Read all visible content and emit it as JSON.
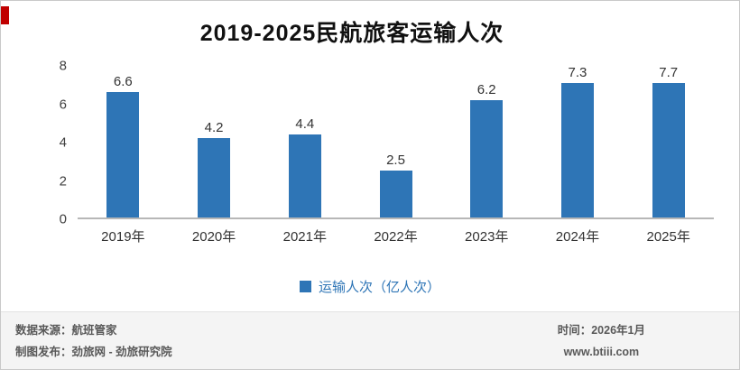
{
  "chart_data": {
    "type": "bar",
    "title": "2019-2025民航旅客运输人次",
    "categories": [
      "2019年",
      "2020年",
      "2021年",
      "2022年",
      "2023年",
      "2024年",
      "2025年"
    ],
    "values": [
      6.6,
      4.2,
      4.4,
      2.5,
      6.2,
      7.3,
      7.7
    ],
    "ylim": [
      0,
      8
    ],
    "yticks": [
      0,
      2,
      4,
      6,
      8
    ],
    "xlabel": "",
    "ylabel": "",
    "grid": false,
    "legend_position": "bottom",
    "legend": "运输人次（亿人次）",
    "bar_color": "#2E75B6"
  },
  "accent": {
    "red_mark_color": "#C00000"
  },
  "footer": {
    "source": "数据来源：航班管家",
    "publisher": "制图发布：劲旅网 - 劲旅研究院",
    "date": "时间：2026年1月",
    "website": "www.btiii.com"
  }
}
